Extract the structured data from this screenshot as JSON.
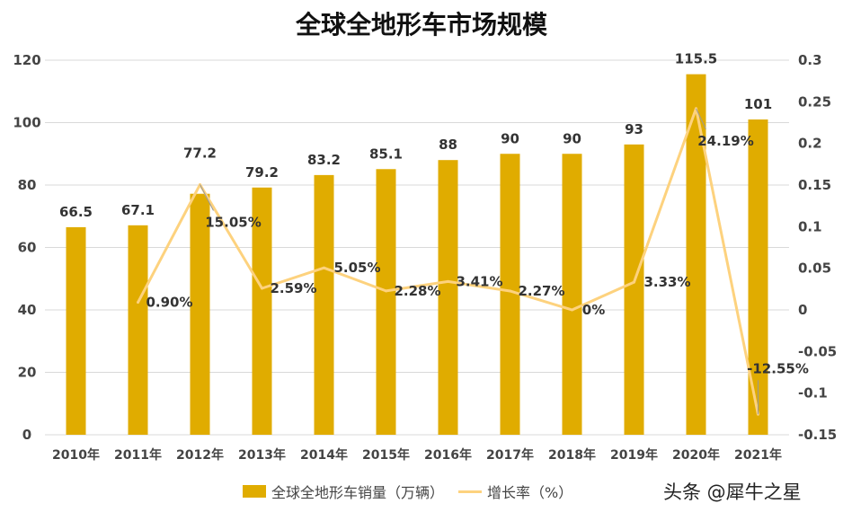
{
  "chart_data": {
    "type": "bar+line",
    "title": "全球全地形车市场规模",
    "categories": [
      "2010年",
      "2011年",
      "2012年",
      "2013年",
      "2014年",
      "2015年",
      "2016年",
      "2017年",
      "2018年",
      "2019年",
      "2020年",
      "2021年"
    ],
    "series": [
      {
        "name": "全球全地形车销量（万辆）",
        "type": "bar",
        "axis": "left",
        "color": "#E0AC00",
        "values": [
          66.5,
          67.1,
          77.2,
          79.2,
          83.2,
          85.1,
          88,
          90,
          90,
          93,
          115.5,
          101
        ],
        "labels": [
          "66.5",
          "67.1",
          "77.2",
          "79.2",
          "83.2",
          "85.1",
          "88",
          "90",
          "90",
          "93",
          "115.5",
          "101"
        ]
      },
      {
        "name": "增长率（%）",
        "type": "line",
        "axis": "right",
        "color": "#FDD27E",
        "values": [
          null,
          0.009,
          0.1505,
          0.0259,
          0.0505,
          0.0228,
          0.0341,
          0.0227,
          0,
          0.0333,
          0.2419,
          -0.1255
        ],
        "labels": [
          "",
          "0.90%",
          "15.05%",
          "2.59%",
          "5.05%",
          "2.28%",
          "3.41%",
          "2.27%",
          "0%",
          "3.33%",
          "24.19%",
          "-12.55%"
        ]
      }
    ],
    "left_axis": {
      "ylim": [
        0,
        120
      ],
      "ticks": [
        "0",
        "20",
        "40",
        "60",
        "80",
        "100",
        "120"
      ]
    },
    "right_axis": {
      "ylim": [
        -0.15,
        0.3
      ],
      "ticks": [
        "-0.15",
        "-0.1",
        "-0.05",
        "0",
        "0.05",
        "0.1",
        "0.15",
        "0.2",
        "0.25",
        "0.3"
      ]
    },
    "grid": true,
    "legend": "bottom"
  },
  "watermark": "头条 @犀牛之星"
}
